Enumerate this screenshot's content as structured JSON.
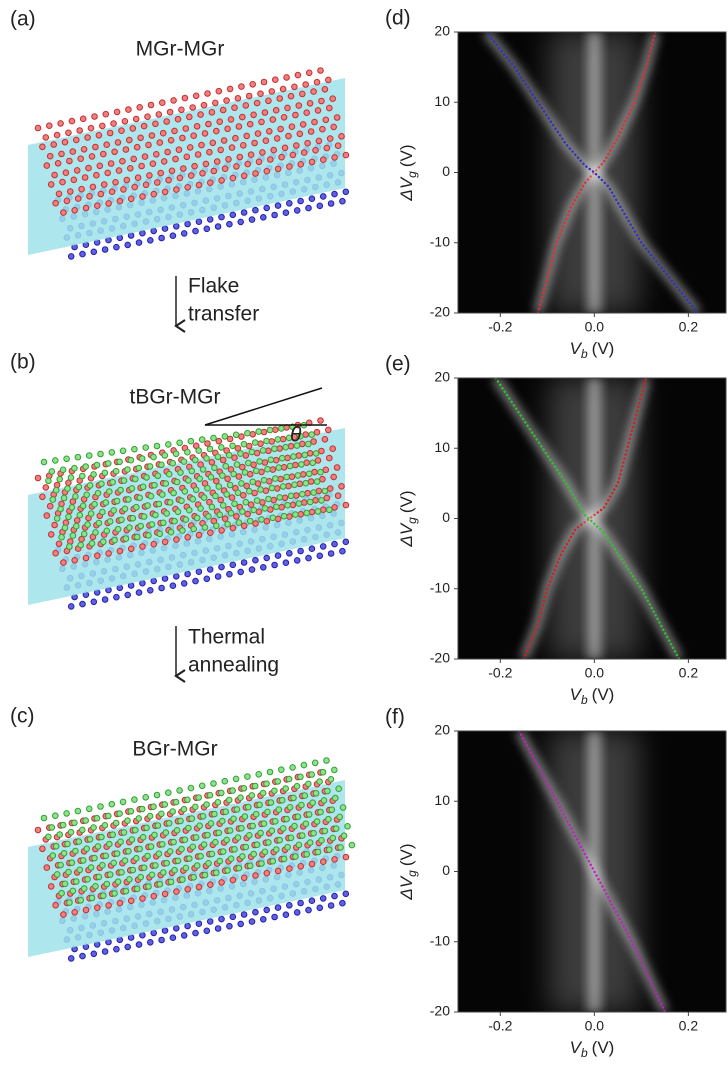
{
  "diagram": {
    "panels": [
      {
        "label": "(a)",
        "title": "MGr-MGr"
      },
      {
        "label": "(b)",
        "title": "tBGr-MGr",
        "angle": "θ"
      },
      {
        "label": "(c)",
        "title": "BGr-MGr"
      }
    ],
    "steps": [
      {
        "lines": [
          "Flake",
          "transfer"
        ]
      },
      {
        "lines": [
          "Thermal",
          "annealing"
        ]
      }
    ]
  },
  "chart_data": [
    {
      "type": "heatmap",
      "label": "(d)",
      "xlabel": {
        "symbol": "V",
        "subscript": "b",
        "unit": "(V)"
      },
      "ylabel": {
        "symbol": "ΔV",
        "subscript": "g",
        "unit": "(V)"
      },
      "xlim": [
        -0.29,
        0.28
      ],
      "ylim": [
        -20,
        20
      ],
      "xticks": [
        -0.2,
        {
          "value": 0,
          "label": "0.0"
        },
        0.2
      ],
      "yticks": [
        20,
        10,
        0,
        -10,
        -20
      ],
      "series": [
        {
          "color": "#e03030",
          "x": [
            -0.12,
            -0.1,
            -0.08,
            -0.05,
            -0.02,
            0,
            0.02,
            0.05,
            0.085,
            0.11,
            0.13
          ],
          "values": [
            -20,
            -15,
            -10,
            -5,
            -1.5,
            0,
            1.5,
            5,
            10,
            15,
            20
          ]
        },
        {
          "color": "#3030c0",
          "x": [
            -0.23,
            -0.17,
            -0.12,
            -0.06,
            -0.02,
            0,
            0.03,
            0.1,
            0.16,
            0.22
          ],
          "values": [
            20,
            15,
            10,
            4,
            1,
            0,
            -2,
            -10,
            -15,
            -20
          ]
        }
      ]
    },
    {
      "type": "heatmap",
      "label": "(e)",
      "xlabel": {
        "symbol": "V",
        "subscript": "b",
        "unit": "(V)"
      },
      "ylabel": {
        "symbol": "ΔV",
        "subscript": "g",
        "unit": "(V)"
      },
      "xlim": [
        -0.29,
        0.28
      ],
      "ylim": [
        -20,
        20
      ],
      "xticks": [
        -0.2,
        {
          "value": 0,
          "label": "0.0"
        },
        0.2
      ],
      "yticks": [
        20,
        10,
        0,
        -10,
        -20
      ],
      "series": [
        {
          "color": "#d02020",
          "x": [
            -0.15,
            -0.12,
            -0.1,
            -0.07,
            -0.04,
            -0.01,
            0.02,
            0.05,
            0.07,
            0.09,
            0.11
          ],
          "values": [
            -20,
            -15,
            -10,
            -5,
            -1.5,
            0,
            1.5,
            5,
            10,
            15,
            20
          ]
        },
        {
          "color": "#30c030",
          "x": [
            -0.21,
            -0.16,
            -0.11,
            -0.06,
            -0.02,
            0.02,
            0.05,
            0.1,
            0.14,
            0.18
          ],
          "values": [
            20,
            15,
            10,
            5,
            0.5,
            -2,
            -5,
            -10,
            -15,
            -20
          ]
        }
      ]
    },
    {
      "type": "heatmap",
      "label": "(f)",
      "xlabel": {
        "symbol": "V",
        "subscript": "b",
        "unit": "(V)"
      },
      "ylabel": {
        "symbol": "ΔV",
        "subscript": "g",
        "unit": "(V)"
      },
      "xlim": [
        -0.29,
        0.28
      ],
      "ylim": [
        -20,
        20
      ],
      "xticks": [
        -0.2,
        {
          "value": 0,
          "label": "0.0"
        },
        0.2
      ],
      "yticks": [
        20,
        10,
        0,
        -10,
        -20
      ],
      "series": [
        {
          "color": "#c020c0",
          "x": [
            -0.16,
            -0.08,
            0,
            0.08,
            0.15
          ],
          "values": [
            20,
            10,
            0,
            -10,
            -20
          ]
        }
      ]
    }
  ]
}
